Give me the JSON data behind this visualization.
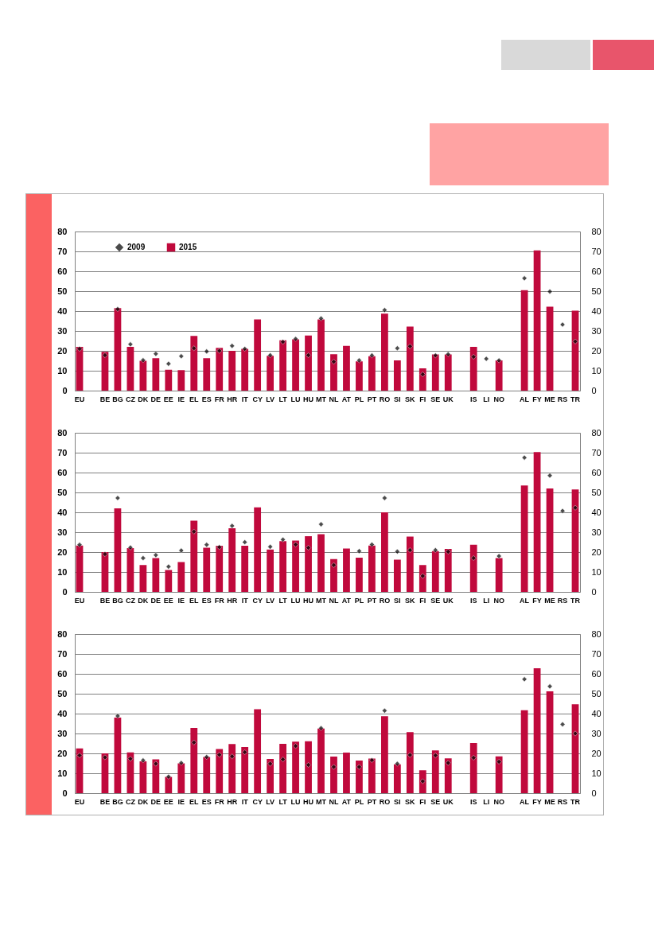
{
  "chart_data": [
    {
      "type": "bar",
      "categories": [
        "EU",
        null,
        "BE",
        "BG",
        "CZ",
        "DK",
        "DE",
        "EE",
        "IE",
        "EL",
        "ES",
        "FR",
        "HR",
        "IT",
        "CY",
        "LV",
        "LT",
        "LU",
        "HU",
        "MT",
        "NL",
        "AT",
        "PL",
        "PT",
        "RO",
        "SI",
        "SK",
        "FI",
        "SE",
        "UK",
        null,
        "IS",
        "LI",
        "NO",
        null,
        "AL",
        "FY",
        "ME",
        "RS",
        "TR"
      ],
      "series": [
        {
          "name": "2009",
          "type": "scatter",
          "marker": "diamond",
          "color": "#000000",
          "values": [
            21,
            null,
            17.8,
            41,
            23.3,
            15.3,
            18.5,
            13.5,
            17.3,
            21.3,
            19.7,
            20,
            22.5,
            21,
            null,
            17.8,
            24.5,
            26,
            17.8,
            36.3,
            14.5,
            null,
            15.2,
            17.7,
            40.5,
            21.3,
            22.3,
            8.2,
            17.7,
            18.3,
            null,
            17,
            16,
            15.2,
            null,
            56.5,
            null,
            49.8,
            33.2,
            24.7
          ]
        },
        {
          "name": "2015",
          "color": "#c0093c",
          "values": [
            22,
            null,
            19.5,
            41.5,
            22,
            15,
            16.3,
            10.5,
            10.3,
            27.5,
            16.3,
            21.5,
            20,
            21,
            35.8,
            17.5,
            25.3,
            25.8,
            27.7,
            35.8,
            18.3,
            22.5,
            14.7,
            17.3,
            38.7,
            15.2,
            32.2,
            11.2,
            18.2,
            18.2,
            null,
            22,
            null,
            15.2,
            null,
            50.5,
            70.5,
            42.2,
            null,
            40.2
          ]
        }
      ],
      "ylim": [
        0,
        80
      ],
      "yticks": [
        0,
        10,
        20,
        30,
        40,
        50,
        60,
        70,
        80
      ],
      "y2lim": [
        0,
        80
      ],
      "y2ticks": [
        0,
        10,
        20,
        30,
        40,
        50,
        60,
        70,
        80
      ],
      "grid": "y",
      "legend": "top left"
    },
    {
      "type": "bar",
      "categories": [
        "EU",
        null,
        "BE",
        "BG",
        "CZ",
        "DK",
        "DE",
        "EE",
        "IE",
        "EL",
        "ES",
        "FR",
        "HR",
        "IT",
        "CY",
        "LV",
        "LT",
        "LU",
        "HU",
        "MT",
        "NL",
        "AT",
        "PL",
        "PT",
        "RO",
        "SI",
        "SK",
        "FI",
        "SE",
        "UK",
        null,
        "IS",
        "LI",
        "NO",
        null,
        "AL",
        "FY",
        "ME",
        "RS",
        "TR"
      ],
      "series": [
        {
          "type": "scatter",
          "marker": "diamond",
          "color": "#000000",
          "values": [
            23.7,
            null,
            19,
            47.2,
            22.3,
            17,
            18.5,
            12.7,
            20.8,
            30.3,
            23.7,
            22.5,
            33.2,
            25,
            null,
            22.7,
            26.3,
            23.8,
            22.2,
            34,
            13.5,
            null,
            20.5,
            23.8,
            47.2,
            20.3,
            21,
            8,
            21,
            20.2,
            null,
            17,
            null,
            18,
            null,
            67.5,
            null,
            58.5,
            40.7,
            42.3
          ]
        },
        {
          "color": "#c0093c",
          "values": [
            23.3,
            null,
            20,
            42,
            22,
            13.5,
            17,
            11,
            15,
            35.8,
            22.2,
            23.2,
            32,
            23.2,
            42.5,
            21.3,
            25.5,
            25.8,
            28,
            29,
            16.5,
            21.8,
            17.2,
            23.3,
            40,
            16.2,
            27.8,
            13.5,
            20.5,
            21.6,
            null,
            23.7,
            null,
            17,
            null,
            53.5,
            70.3,
            52,
            null,
            51.5
          ]
        }
      ],
      "ylim": [
        0,
        80
      ],
      "yticks": [
        0,
        10,
        20,
        30,
        40,
        50,
        60,
        70,
        80
      ],
      "y2lim": [
        0,
        80
      ],
      "y2ticks": [
        0,
        10,
        20,
        30,
        40,
        50,
        60,
        70,
        80
      ],
      "grid": "y"
    },
    {
      "type": "bar",
      "categories": [
        "EU",
        null,
        "BE",
        "BG",
        "CZ",
        "DK",
        "DE",
        "EE",
        "IE",
        "EL",
        "ES",
        "FR",
        "HR",
        "IT",
        "CY",
        "LV",
        "LT",
        "LU",
        "HU",
        "MT",
        "NL",
        "AT",
        "PL",
        "PT",
        "RO",
        "SI",
        "SK",
        "FI",
        "SE",
        "UK",
        null,
        "IS",
        "LI",
        "NO",
        null,
        "AL",
        "FY",
        "ME",
        "RS",
        "TR"
      ],
      "series": [
        {
          "type": "scatter",
          "marker": "diamond",
          "color": "#000000",
          "values": [
            19,
            null,
            18,
            38.8,
            17.3,
            16.5,
            14.8,
            8.3,
            15.2,
            25.5,
            18.2,
            19.3,
            18.5,
            20.6,
            null,
            14.8,
            17,
            23.7,
            14.2,
            32.7,
            13.2,
            null,
            13.2,
            16.6,
            41.5,
            14.8,
            19.2,
            6,
            19,
            15.2,
            null,
            17.8,
            null,
            15.8,
            null,
            57.3,
            null,
            53.7,
            34.6,
            30
          ]
        },
        {
          "color": "#c0093c",
          "values": [
            22.5,
            null,
            20,
            38,
            20.5,
            16,
            17,
            8.2,
            15,
            32.8,
            18.2,
            22.2,
            24.7,
            23.2,
            42.2,
            17.2,
            24.8,
            25.9,
            26.1,
            32.5,
            18.4,
            20.4,
            16.4,
            17.4,
            38.7,
            14.5,
            30.7,
            11.5,
            21.5,
            17.5,
            null,
            25.2,
            null,
            18.5,
            null,
            41.7,
            62.8,
            51.2,
            null,
            44.7
          ]
        }
      ],
      "ylim": [
        0,
        80
      ],
      "yticks": [
        0,
        10,
        20,
        30,
        40,
        50,
        60,
        70,
        80
      ],
      "y2lim": [
        0,
        80
      ],
      "y2ticks": [
        0,
        10,
        20,
        30,
        40,
        50,
        60,
        70,
        80
      ],
      "grid": "y"
    }
  ]
}
